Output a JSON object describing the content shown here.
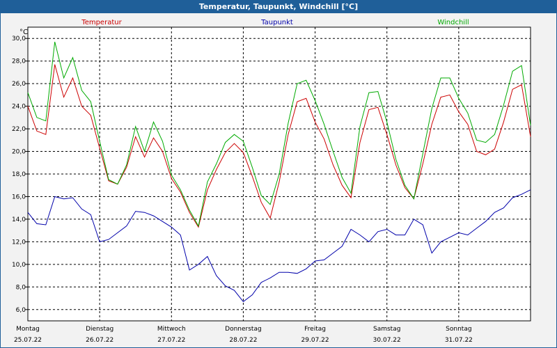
{
  "header": {
    "title": "Temperatur, Taupunkt, Windchill [°C]"
  },
  "colors": {
    "temperature": "#cc0000",
    "dewpoint": "#0000aa",
    "windchill": "#00aa00",
    "grid": "#000000",
    "titlebar": "#1f5f99"
  },
  "chart_data": {
    "type": "line",
    "title": "Temperatur, Taupunkt, Windchill [°C]",
    "ylabel": "°C",
    "xlabel": "",
    "ylim": [
      5.0,
      31.0
    ],
    "xlim": [
      0,
      7
    ],
    "grid": true,
    "legend_position": "top",
    "yticks": [
      "6,0",
      "8,0",
      "10,0",
      "12,0",
      "14,0",
      "16,0",
      "18,0",
      "20,0",
      "22,0",
      "24,0",
      "26,0",
      "28,0",
      "30,0"
    ],
    "ytick_values": [
      6,
      8,
      10,
      12,
      14,
      16,
      18,
      20,
      22,
      24,
      26,
      28,
      30
    ],
    "xticks": [
      {
        "day": "Montag",
        "date": "25.07.22"
      },
      {
        "day": "Dienstag",
        "date": "26.07.22"
      },
      {
        "day": "Mittwoch",
        "date": "27.07.22"
      },
      {
        "day": "Donnerstag",
        "date": "28.07.22"
      },
      {
        "day": "Freitag",
        "date": "29.07.22"
      },
      {
        "day": "Samstag",
        "date": "30.07.22"
      },
      {
        "day": "Sonntag",
        "date": "31.07.22"
      }
    ],
    "x": [
      0,
      0.125,
      0.25,
      0.375,
      0.5,
      0.625,
      0.75,
      0.875,
      1,
      1.125,
      1.25,
      1.375,
      1.5,
      1.625,
      1.75,
      1.875,
      2,
      2.125,
      2.25,
      2.375,
      2.5,
      2.625,
      2.75,
      2.875,
      3,
      3.125,
      3.25,
      3.375,
      3.5,
      3.625,
      3.75,
      3.875,
      4,
      4.125,
      4.25,
      4.375,
      4.5,
      4.625,
      4.75,
      4.875,
      5,
      5.125,
      5.25,
      5.375,
      5.5,
      5.625,
      5.75,
      5.875,
      6,
      6.125,
      6.25,
      6.375,
      6.5,
      6.625,
      6.75,
      6.875,
      7
    ],
    "series": [
      {
        "name": "Temperatur",
        "color": "#cc0000",
        "values": [
          24.0,
          21.8,
          21.5,
          27.7,
          24.8,
          26.5,
          24.0,
          23.2,
          20.3,
          17.4,
          17.1,
          18.6,
          21.3,
          19.5,
          21.2,
          20.0,
          17.6,
          16.4,
          14.6,
          13.3,
          16.6,
          18.4,
          19.9,
          20.7,
          19.9,
          17.8,
          15.5,
          14.1,
          17.3,
          21.5,
          24.4,
          24.7,
          22.6,
          21.1,
          18.8,
          17.0,
          15.9,
          20.8,
          23.7,
          23.9,
          21.5,
          18.8,
          16.8,
          15.8,
          18.9,
          22.4,
          24.8,
          25.0,
          23.5,
          22.4,
          20.0,
          19.7,
          20.2,
          22.6,
          25.5,
          25.9,
          21.3
        ]
      },
      {
        "name": "Windchill",
        "color": "#00aa00",
        "values": [
          25.2,
          23.0,
          22.7,
          29.7,
          26.5,
          28.3,
          25.4,
          24.4,
          20.9,
          17.5,
          17.1,
          18.8,
          22.2,
          20.0,
          22.6,
          20.9,
          17.9,
          16.6,
          14.8,
          13.4,
          17.3,
          18.9,
          20.8,
          21.5,
          20.9,
          18.6,
          16.1,
          15.3,
          18.0,
          22.5,
          26.0,
          26.3,
          24.5,
          22.4,
          20.0,
          17.7,
          16.3,
          22.2,
          25.2,
          25.3,
          22.6,
          19.3,
          17.0,
          15.8,
          19.8,
          23.8,
          26.5,
          26.5,
          24.7,
          23.4,
          21.0,
          20.8,
          21.5,
          24.1,
          27.1,
          27.6,
          22.3
        ]
      },
      {
        "name": "Taupunkt",
        "color": "#0000aa",
        "values": [
          14.6,
          13.6,
          13.5,
          16.0,
          15.8,
          15.9,
          14.9,
          14.4,
          12.0,
          12.2,
          12.8,
          13.4,
          14.7,
          14.6,
          14.3,
          13.8,
          13.3,
          12.6,
          9.5,
          10.0,
          10.7,
          9.0,
          8.1,
          7.7,
          6.7,
          7.3,
          8.4,
          8.8,
          9.3,
          9.3,
          9.2,
          9.6,
          10.3,
          10.4,
          11.0,
          11.6,
          13.1,
          12.6,
          12.0,
          12.9,
          13.1,
          12.6,
          12.6,
          14.0,
          13.5,
          11.0,
          12.0,
          12.4,
          12.8,
          12.6,
          13.2,
          13.8,
          14.6,
          15.0,
          15.9,
          16.2,
          16.6
        ]
      }
    ]
  }
}
